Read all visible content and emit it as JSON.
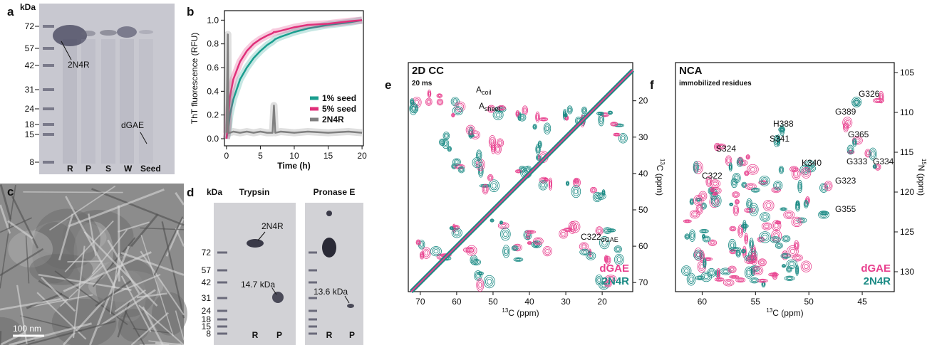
{
  "panel_a": {
    "letter": "a",
    "unit": "kDa",
    "markers": [
      72,
      57,
      42,
      31,
      24,
      18,
      15,
      8
    ],
    "labels": [
      "2N4R",
      "dGAE"
    ],
    "lanes": [
      "R",
      "P",
      "S",
      "W",
      "Seed"
    ]
  },
  "panel_c": {
    "letter": "c",
    "scale_bar": "100 nm"
  },
  "panel_d": {
    "letter": "d",
    "unit": "kDa",
    "gels": [
      "Trypsin",
      "Pronase E"
    ],
    "markers": [
      72,
      57,
      42,
      31,
      24,
      18,
      15,
      8
    ],
    "labels": [
      "2N4R",
      "14.7 kDa",
      "13.6 kDa"
    ],
    "lanes": [
      "R",
      "P",
      "R",
      "P"
    ]
  },
  "chart_data": [
    {
      "type": "line",
      "letter": "b",
      "x_label": "Time (h)",
      "y_label": "ThT fluorescence (RFU)",
      "x": [
        0,
        0.2,
        0.3,
        0.5,
        1,
        2,
        3,
        4,
        5,
        6,
        6.8,
        7,
        7.2,
        8,
        10,
        12,
        15,
        18,
        20
      ],
      "series": [
        {
          "name": "1% seed",
          "color": "#1a9e8f",
          "values": [
            0,
            0.06,
            0.1,
            0.2,
            0.33,
            0.5,
            0.6,
            0.68,
            0.74,
            0.79,
            0.82,
            0.83,
            0.84,
            0.86,
            0.9,
            0.93,
            0.96,
            0.98,
            1.0
          ]
        },
        {
          "name": "5% seed",
          "color": "#e0307a",
          "values": [
            0,
            0.12,
            0.2,
            0.35,
            0.5,
            0.65,
            0.74,
            0.8,
            0.84,
            0.87,
            0.89,
            0.9,
            0.9,
            0.91,
            0.94,
            0.96,
            0.97,
            0.99,
            1.0
          ]
        },
        {
          "name": "2N4R",
          "color": "#808080",
          "values": [
            0.05,
            0.88,
            0.05,
            0.05,
            0.06,
            0.05,
            0.06,
            0.05,
            0.06,
            0.05,
            0.05,
            0.28,
            0.05,
            0.06,
            0.05,
            0.06,
            0.05,
            0.06,
            0.05
          ]
        }
      ],
      "xlim": [
        -0.3,
        20.2
      ],
      "xticks": [
        0,
        5,
        10,
        15,
        20
      ],
      "ylim": [
        -0.06,
        1.08
      ],
      "yticks": [
        {
          "value": 0,
          "label": "0.0"
        },
        0.2,
        0.4,
        0.6,
        0.8,
        {
          "value": 1,
          "label": "1.0"
        }
      ],
      "y_axis": "left",
      "legend": "center right"
    },
    {
      "type": "contour",
      "letter": "e",
      "title": "2D CC",
      "subtitle": "20 ms",
      "x_label": {
        "sup": "13",
        "text": "C (ppm)"
      },
      "y_label": {
        "sup": "13",
        "text": "C (ppm)"
      },
      "series": [
        {
          "name": "dGAE",
          "color": "#e8408e"
        },
        {
          "name": "2N4R",
          "color": "#1a8a84"
        }
      ],
      "annotations": [
        {
          "main": "A",
          "sub": "coil"
        },
        {
          "main": "A",
          "sub": "sheet"
        },
        {
          "main": "C322",
          "sub": "dGAE"
        }
      ],
      "xlim": [
        73.3,
        11.6
      ],
      "xticks": [
        70,
        60,
        50,
        40,
        30,
        20
      ],
      "ylim": [
        72.5,
        9.5
      ],
      "yticks": [
        20,
        30,
        40,
        50,
        60,
        70
      ],
      "y_axis": "right",
      "diagonal": true,
      "legend": "lower right"
    },
    {
      "type": "contour",
      "letter": "f",
      "title": "NCA",
      "subtitle": "immobilized residues",
      "x_label": {
        "sup": "13",
        "text": "C (ppm)"
      },
      "y_label": {
        "sup": "15",
        "text": "N (ppm)"
      },
      "series": [
        {
          "name": "dGAE",
          "color": "#e8408e"
        },
        {
          "name": "2N4R",
          "color": "#1a8a84"
        }
      ],
      "annotations": [
        "H388",
        "S341",
        "S324",
        "K340",
        "G389",
        "G326",
        "G365",
        "G333",
        "G334",
        "G323",
        "G355",
        "C322"
      ],
      "xlim": [
        62.5,
        42
      ],
      "xticks": [
        60,
        55,
        50,
        45
      ],
      "ylim": [
        132.5,
        103.75
      ],
      "yticks": [
        105,
        110,
        115,
        120,
        125,
        130
      ],
      "y_axis": "right",
      "diagonal": false,
      "legend": "lower right"
    }
  ]
}
